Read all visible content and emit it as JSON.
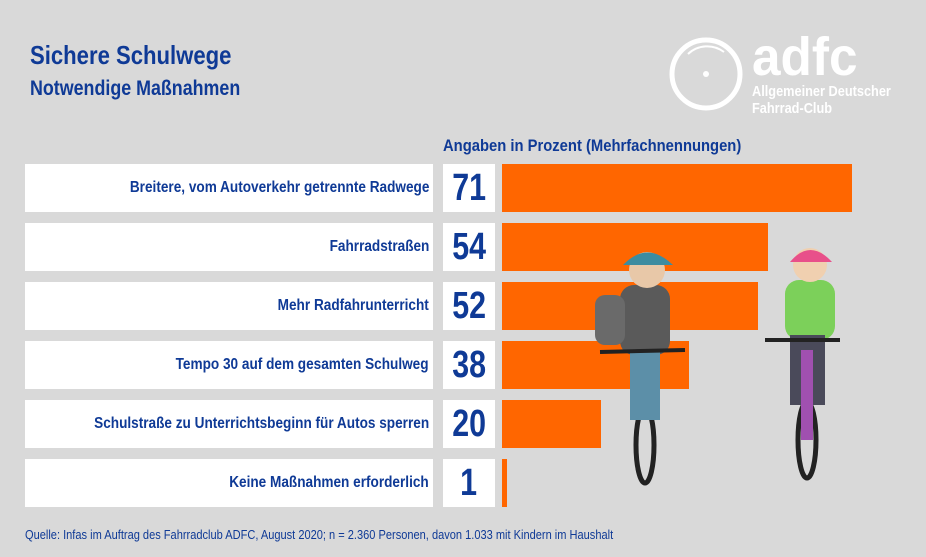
{
  "header": {
    "title": "Sichere Schulwege",
    "subtitle": "Notwendige Maßnahmen"
  },
  "logo": {
    "word": "adfc",
    "line1": "Allgemeiner Deutscher",
    "line2": "Fahrrad-Club"
  },
  "chart_data": {
    "type": "bar",
    "orientation": "horizontal",
    "note": "Angaben in Prozent (Mehrfachnennungen)",
    "categories": [
      "Breitere, vom Autoverkehr getrennte Radwege",
      "Fahrradstraßen",
      "Mehr Radfahrunterricht",
      "Tempo 30 auf dem gesamten Schulweg",
      "Schulstraße zu Unterrichtsbeginn für Autos sperren",
      "Keine Maßnahmen erforderlich"
    ],
    "values": [
      71,
      54,
      52,
      38,
      20,
      1
    ],
    "value_labels": [
      "71",
      "54",
      "52",
      "38",
      "20",
      "1"
    ],
    "bar_color": "#ff6600",
    "text_color": "#0f3a96",
    "grid": false
  },
  "source": "Quelle: Infas im Auftrag des Fahrradclub ADFC, August 2020; n = 2.360 Personen, davon 1.033 mit Kindern im Haushalt"
}
